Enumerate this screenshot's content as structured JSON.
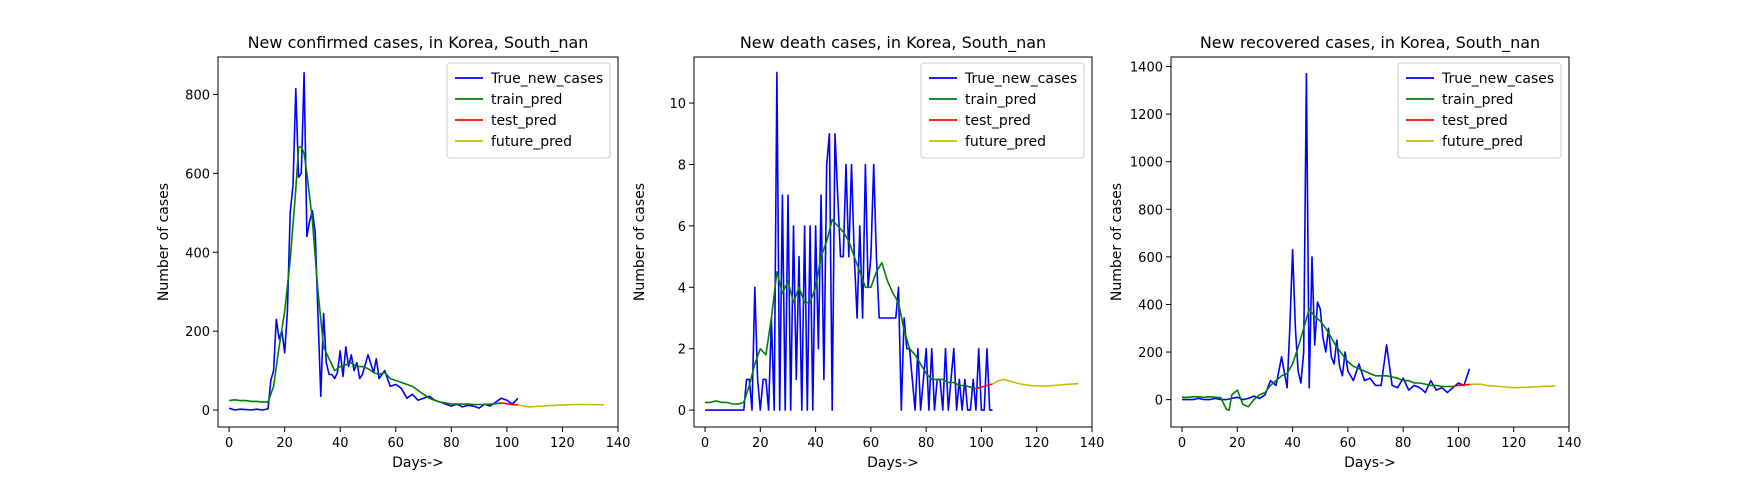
{
  "chart_data": [
    {
      "type": "line",
      "title": "New confirmed cases, in Korea, South_nan",
      "xlabel": "Days->",
      "ylabel": "Number of cases",
      "xlim": [
        -4,
        140
      ],
      "ylim": [
        -43,
        895
      ],
      "xticks": [
        0,
        20,
        40,
        60,
        80,
        100,
        120,
        140
      ],
      "yticks": [
        0,
        200,
        400,
        600,
        800
      ],
      "legend": "top-right",
      "series": [
        {
          "name": "True_new_cases",
          "color": "#0000ff",
          "x": [
            0,
            2,
            4,
            6,
            8,
            10,
            12,
            14,
            15,
            16,
            17,
            18,
            19,
            20,
            21,
            22,
            23,
            24,
            25,
            26,
            27,
            28,
            29,
            30,
            31,
            32,
            33,
            34,
            35,
            36,
            37,
            38,
            39,
            40,
            41,
            42,
            43,
            44,
            45,
            46,
            47,
            48,
            50,
            52,
            53,
            54,
            56,
            58,
            60,
            62,
            64,
            66,
            68,
            70,
            72,
            74,
            76,
            78,
            80,
            82,
            84,
            86,
            88,
            90,
            92,
            94,
            96,
            98,
            100,
            102,
            104
          ],
          "y": [
            5,
            0,
            2,
            1,
            0,
            2,
            0,
            3,
            75,
            100,
            230,
            180,
            200,
            145,
            250,
            500,
            570,
            815,
            590,
            600,
            855,
            440,
            480,
            505,
            450,
            240,
            35,
            245,
            120,
            90,
            90,
            80,
            95,
            150,
            85,
            160,
            110,
            140,
            100,
            120,
            80,
            90,
            140,
            95,
            130,
            80,
            100,
            60,
            65,
            55,
            30,
            40,
            25,
            30,
            35,
            25,
            20,
            15,
            10,
            15,
            8,
            12,
            10,
            5,
            15,
            10,
            20,
            30,
            25,
            15,
            30
          ]
        },
        {
          "name": "train_pred",
          "color": "#008000",
          "x": [
            0,
            2,
            4,
            6,
            8,
            10,
            12,
            14,
            16,
            18,
            20,
            22,
            24,
            25,
            26,
            27,
            28,
            30,
            32,
            34,
            36,
            38,
            40,
            42,
            44,
            46,
            48,
            50,
            52,
            54,
            56,
            58,
            60,
            62,
            64,
            66,
            68,
            70,
            72,
            74,
            76,
            78,
            80,
            82,
            84,
            86,
            88,
            90,
            92,
            94,
            96,
            98
          ],
          "y": [
            24,
            26,
            24,
            24,
            22,
            22,
            20,
            20,
            60,
            160,
            250,
            380,
            560,
            665,
            668,
            650,
            600,
            480,
            300,
            160,
            130,
            100,
            110,
            115,
            120,
            110,
            110,
            105,
            95,
            90,
            95,
            80,
            75,
            70,
            65,
            60,
            50,
            40,
            30,
            25,
            20,
            18,
            15,
            15,
            15,
            15,
            14,
            14,
            14,
            15,
            16,
            18
          ]
        },
        {
          "name": "test_pred",
          "color": "#ff0000",
          "x": [
            98,
            100,
            102,
            104
          ],
          "y": [
            18,
            16,
            14,
            13
          ]
        },
        {
          "name": "future_pred",
          "color": "#bfbf00",
          "x": [
            104,
            106,
            108,
            110,
            115,
            120,
            125,
            130,
            135
          ],
          "y": [
            13,
            10,
            8,
            9,
            11,
            13,
            14,
            14,
            13
          ]
        }
      ]
    },
    {
      "type": "line",
      "title": "New death cases, in Korea, South_nan",
      "xlabel": "Days->",
      "ylabel": "Number of cases",
      "xlim": [
        -4,
        140
      ],
      "ylim": [
        -0.55,
        11.5
      ],
      "xticks": [
        0,
        20,
        40,
        60,
        80,
        100,
        120,
        140
      ],
      "yticks": [
        0,
        2,
        4,
        6,
        8,
        10
      ],
      "legend": "top-right",
      "series": [
        {
          "name": "True_new_cases",
          "color": "#0000ff",
          "x": [
            0,
            2,
            4,
            6,
            8,
            10,
            12,
            14,
            15,
            16,
            17,
            18,
            19,
            20,
            21,
            22,
            23,
            24,
            25,
            26,
            27,
            28,
            29,
            30,
            31,
            32,
            33,
            34,
            35,
            36,
            37,
            38,
            39,
            40,
            41,
            42,
            43,
            44,
            45,
            46,
            47,
            48,
            49,
            50,
            51,
            52,
            53,
            54,
            55,
            56,
            57,
            58,
            59,
            60,
            61,
            62,
            63,
            64,
            65,
            66,
            67,
            68,
            69,
            70,
            71,
            72,
            73,
            74,
            75,
            76,
            77,
            78,
            79,
            80,
            81,
            82,
            83,
            84,
            85,
            86,
            87,
            88,
            89,
            90,
            91,
            92,
            93,
            94,
            95,
            96,
            97,
            98,
            99,
            100,
            101,
            102,
            103,
            104
          ],
          "y": [
            0,
            0,
            0,
            0,
            0,
            0,
            0,
            0,
            1,
            1,
            0,
            4,
            1,
            0,
            1,
            1,
            0,
            3,
            0,
            11,
            0,
            7,
            0,
            7,
            0,
            6,
            1,
            5,
            0,
            6,
            0,
            6,
            0,
            6,
            2,
            7,
            1,
            8,
            9,
            0,
            9,
            7,
            5,
            5,
            8,
            5,
            8,
            5,
            3,
            6,
            3,
            8,
            4,
            5,
            8,
            5,
            3,
            3,
            3,
            3,
            3,
            3,
            3,
            4,
            0,
            3,
            2,
            2,
            1,
            0,
            2,
            0,
            1,
            2,
            0,
            2,
            0,
            1,
            1,
            0,
            2,
            0,
            1,
            2,
            0,
            1,
            0,
            1,
            0,
            0,
            1,
            0,
            2,
            0,
            0,
            2,
            0,
            0
          ]
        },
        {
          "name": "train_pred",
          "color": "#008000",
          "x": [
            0,
            2,
            4,
            6,
            8,
            10,
            12,
            14,
            16,
            18,
            20,
            22,
            24,
            26,
            28,
            30,
            32,
            34,
            36,
            38,
            40,
            42,
            44,
            46,
            48,
            50,
            52,
            54,
            56,
            58,
            60,
            62,
            64,
            66,
            68,
            70,
            72,
            74,
            76,
            78,
            80,
            82,
            84,
            86,
            88,
            90,
            92,
            94,
            96,
            98
          ],
          "y": [
            0.25,
            0.25,
            0.3,
            0.25,
            0.25,
            0.2,
            0.2,
            0.25,
            0.8,
            1.5,
            2.0,
            1.8,
            3.0,
            4.5,
            3.8,
            4.2,
            3.5,
            4.0,
            3.5,
            3.5,
            4.0,
            5.0,
            5.5,
            6.2,
            6.0,
            5.8,
            5.5,
            5.0,
            4.5,
            4.0,
            4.0,
            4.5,
            4.8,
            4.2,
            3.8,
            3.5,
            2.6,
            2.0,
            1.8,
            1.5,
            1.2,
            1.0,
            1.0,
            1.0,
            0.9,
            0.9,
            0.8,
            0.8,
            0.75,
            0.7
          ]
        },
        {
          "name": "test_pred",
          "color": "#ff0000",
          "x": [
            98,
            100,
            102,
            104
          ],
          "y": [
            0.7,
            0.75,
            0.8,
            0.85
          ]
        },
        {
          "name": "future_pred",
          "color": "#bfbf00",
          "x": [
            104,
            106,
            108,
            110,
            114,
            118,
            122,
            126,
            130,
            135
          ],
          "y": [
            0.85,
            0.95,
            1.0,
            0.95,
            0.85,
            0.8,
            0.78,
            0.8,
            0.83,
            0.86
          ]
        }
      ]
    },
    {
      "type": "line",
      "title": "New recovered cases, in Korea, South_nan",
      "xlabel": "Days->",
      "ylabel": "Number of cases",
      "xlim": [
        -4,
        140
      ],
      "ylim": [
        -115,
        1440
      ],
      "xticks": [
        0,
        20,
        40,
        60,
        80,
        100,
        120,
        140
      ],
      "yticks": [
        0,
        200,
        400,
        600,
        800,
        1000,
        1200,
        1400
      ],
      "legend": "top-right",
      "series": [
        {
          "name": "True_new_cases",
          "color": "#0000ff",
          "x": [
            0,
            2,
            4,
            6,
            8,
            10,
            12,
            14,
            16,
            18,
            20,
            22,
            24,
            26,
            28,
            30,
            32,
            34,
            36,
            38,
            39,
            40,
            41,
            42,
            43,
            44,
            45,
            46,
            47,
            48,
            49,
            50,
            51,
            52,
            53,
            54,
            55,
            56,
            57,
            58,
            59,
            60,
            62,
            64,
            66,
            68,
            70,
            72,
            74,
            76,
            78,
            80,
            82,
            84,
            86,
            88,
            90,
            92,
            94,
            96,
            98,
            100,
            102,
            104
          ],
          "y": [
            0,
            0,
            0,
            5,
            0,
            0,
            5,
            0,
            0,
            5,
            10,
            0,
            5,
            15,
            5,
            20,
            80,
            60,
            180,
            50,
            300,
            630,
            300,
            120,
            70,
            200,
            1370,
            50,
            600,
            230,
            410,
            380,
            260,
            200,
            300,
            180,
            150,
            250,
            140,
            100,
            200,
            120,
            80,
            150,
            80,
            90,
            60,
            60,
            230,
            60,
            50,
            90,
            40,
            60,
            50,
            30,
            80,
            40,
            50,
            30,
            50,
            70,
            60,
            130
          ]
        },
        {
          "name": "train_pred",
          "color": "#008000",
          "x": [
            0,
            2,
            4,
            6,
            8,
            10,
            12,
            14,
            16,
            17,
            18,
            20,
            22,
            24,
            26,
            28,
            30,
            32,
            34,
            36,
            38,
            40,
            42,
            44,
            46,
            48,
            50,
            52,
            54,
            56,
            58,
            60,
            62,
            64,
            66,
            68,
            70,
            72,
            74,
            76,
            78,
            80,
            82,
            84,
            86,
            88,
            90,
            92,
            94,
            96,
            98
          ],
          "y": [
            10,
            10,
            12,
            12,
            10,
            12,
            10,
            8,
            -40,
            -45,
            20,
            40,
            -20,
            -30,
            0,
            20,
            30,
            60,
            80,
            100,
            110,
            150,
            220,
            300,
            380,
            350,
            330,
            300,
            260,
            220,
            190,
            160,
            140,
            130,
            120,
            110,
            100,
            100,
            100,
            95,
            90,
            80,
            80,
            70,
            70,
            65,
            60,
            60,
            55,
            55,
            55
          ]
        },
        {
          "name": "test_pred",
          "color": "#ff0000",
          "x": [
            98,
            100,
            102,
            104
          ],
          "y": [
            55,
            60,
            62,
            64
          ]
        },
        {
          "name": "future_pred",
          "color": "#bfbf00",
          "x": [
            104,
            106,
            108,
            110,
            115,
            120,
            125,
            130,
            135
          ],
          "y": [
            64,
            65,
            65,
            60,
            55,
            50,
            52,
            55,
            57
          ]
        }
      ]
    }
  ]
}
